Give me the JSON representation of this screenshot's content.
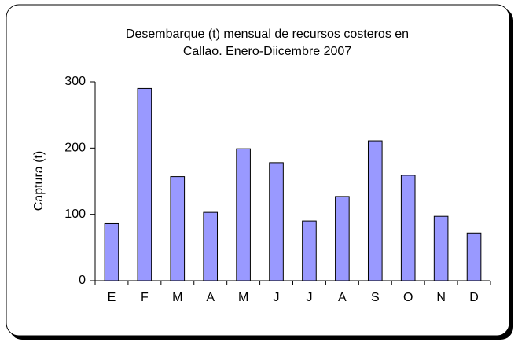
{
  "chart_data": {
    "type": "bar",
    "title": [
      "Desembarque (t) mensual de recursos costeros en",
      "Callao. Enero-Diicembre 2007"
    ],
    "y_label": "Captura (t)",
    "categories": [
      "E",
      "F",
      "M",
      "A",
      "M",
      "J",
      "J",
      "A",
      "S",
      "O",
      "N",
      "D"
    ],
    "values": [
      86,
      290,
      157,
      103,
      199,
      178,
      90,
      127,
      211,
      159,
      97,
      72
    ],
    "color": "#9999ff",
    "ylim": [
      0,
      300
    ],
    "yticks": [
      0,
      100,
      200,
      300
    ],
    "grid": false
  }
}
